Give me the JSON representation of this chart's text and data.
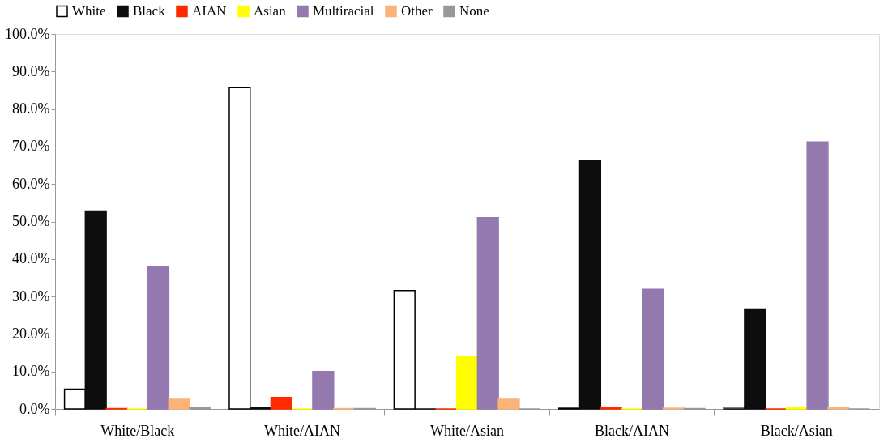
{
  "chart_data": {
    "type": "bar",
    "categories": [
      "White/Black",
      "White/AIAN",
      "White/Asian",
      "Black/AIAN",
      "Black/Asian"
    ],
    "series": [
      {
        "name": "White",
        "color": "#ffffff",
        "values": [
          5.3,
          85.7,
          31.6,
          0.2,
          0.5
        ]
      },
      {
        "name": "Black",
        "color": "#0d0d0d",
        "values": [
          52.8,
          0.3,
          0,
          66.3,
          26.7
        ]
      },
      {
        "name": "AIAN",
        "color": "#ff2a00",
        "values": [
          0.1,
          3.1,
          0,
          0.3,
          0
        ]
      },
      {
        "name": "Asian",
        "color": "#ffff00",
        "values": [
          0,
          0,
          13.9,
          0,
          0.3
        ]
      },
      {
        "name": "Multiracial",
        "color": "#9479ae",
        "values": [
          38.0,
          10.0,
          51.0,
          31.9,
          71.2
        ]
      },
      {
        "name": "Other",
        "color": "#fbb37a",
        "values": [
          2.6,
          0.1,
          2.6,
          0.2,
          0.3
        ]
      },
      {
        "name": "None",
        "color": "#999999",
        "values": [
          0.5,
          0.1,
          0,
          0.1,
          0
        ]
      }
    ],
    "ylim": [
      0,
      100
    ],
    "yticks": [
      {
        "value": 0,
        "label": "0.0%"
      },
      {
        "value": 10,
        "label": "10.0%"
      },
      {
        "value": 20,
        "label": "20.0%"
      },
      {
        "value": 30,
        "label": "30.0%"
      },
      {
        "value": 40,
        "label": "40.0%"
      },
      {
        "value": 50,
        "label": "50.0%"
      },
      {
        "value": 60,
        "label": "60.0%"
      },
      {
        "value": 70,
        "label": "70.0%"
      },
      {
        "value": 80,
        "label": "80.0%"
      },
      {
        "value": 90,
        "label": "90.0%"
      },
      {
        "value": 100,
        "label": "100.0%"
      }
    ],
    "grid": false,
    "legend": "top"
  }
}
